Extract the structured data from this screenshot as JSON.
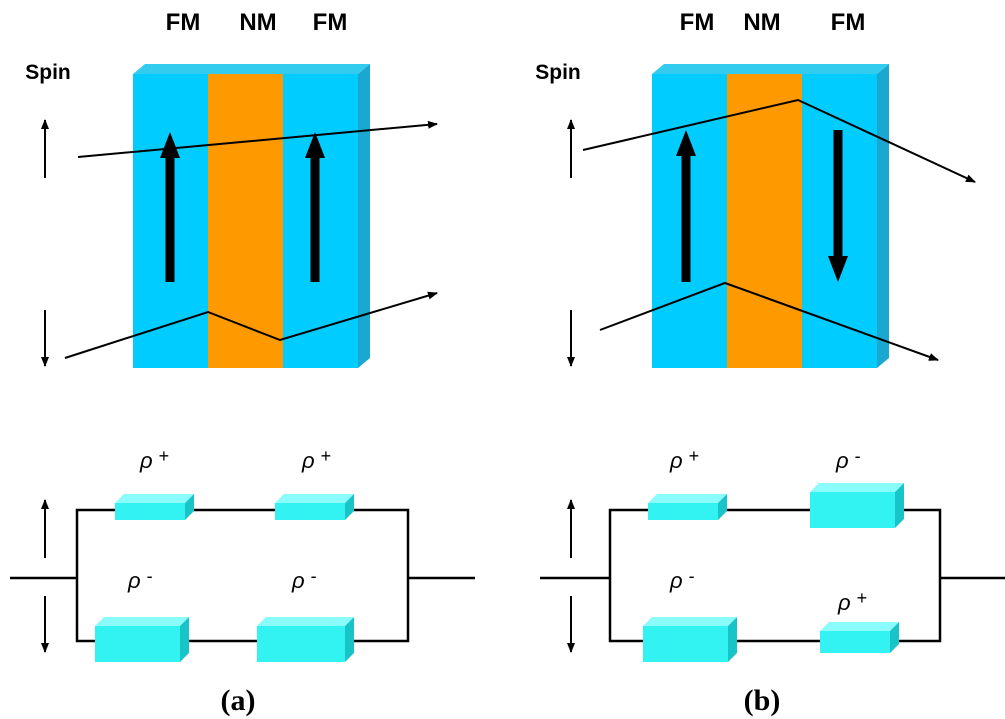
{
  "panels": [
    {
      "layers": [
        "FM",
        "NM",
        "FM"
      ],
      "spin_label": "Spin",
      "resistors": [
        {
          "symbol": "ρ",
          "sign": "+"
        },
        {
          "symbol": "ρ",
          "sign": "+"
        },
        {
          "symbol": "ρ",
          "sign": "-"
        },
        {
          "symbol": "ρ",
          "sign": "-"
        }
      ],
      "caption": "(a)"
    },
    {
      "layers": [
        "FM",
        "NM",
        "FM"
      ],
      "spin_label": "Spin",
      "resistors": [
        {
          "symbol": "ρ",
          "sign": "+"
        },
        {
          "symbol": "ρ",
          "sign": "-"
        },
        {
          "symbol": "ρ",
          "sign": "-"
        },
        {
          "symbol": "ρ",
          "sign": "+"
        }
      ],
      "caption": "(b)"
    }
  ]
}
